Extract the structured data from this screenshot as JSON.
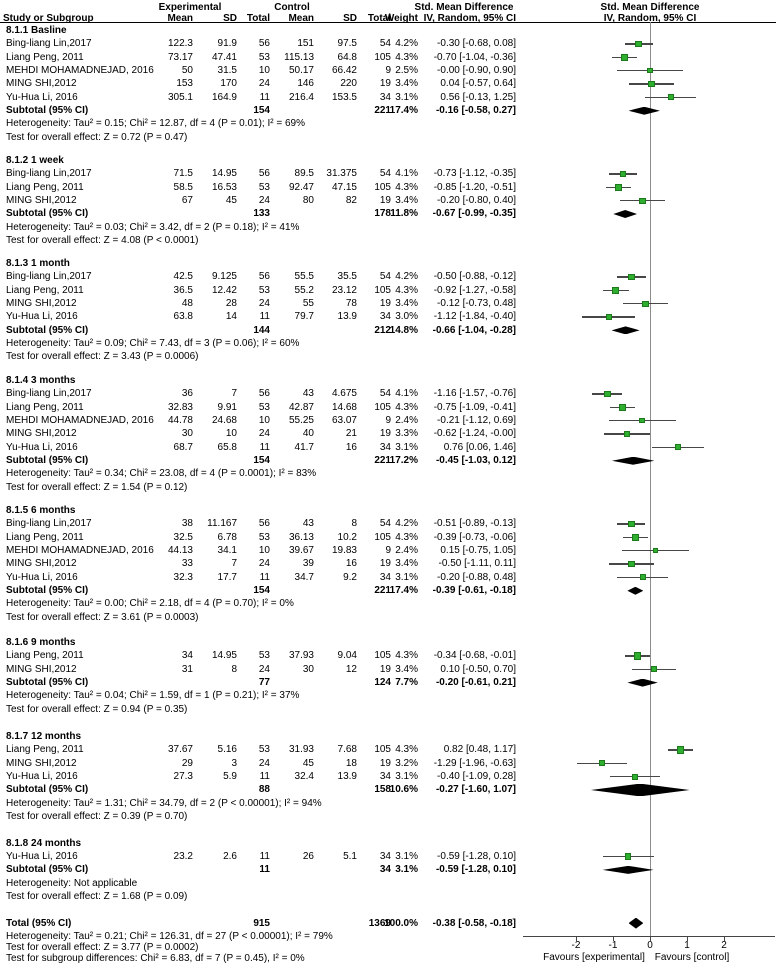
{
  "header": {
    "group_experimental": "Experimental",
    "group_control": "Control",
    "smd_title": "Std. Mean Difference",
    "smd_method": "IV, Random, 95% CI",
    "plot_title": "Std. Mean Difference",
    "plot_method": "IV, Random, 95% CI",
    "study": "Study or Subgroup",
    "mean": "Mean",
    "sd": "SD",
    "total": "Total",
    "mean2": "Mean",
    "sd2": "SD",
    "total2": "Total",
    "weight": "Weight"
  },
  "axis": {
    "ticks": [
      "-2",
      "-1",
      "0",
      "1",
      "2"
    ],
    "tick_values": [
      -2,
      -1,
      0,
      1,
      2
    ],
    "favours_left": "Favours [experimental]",
    "favours_right": "Favours [control]"
  },
  "colors": {
    "square": "#2eae2e",
    "square_border": "#1c7a1c",
    "ci_line": "#474747",
    "diamond": "#000000",
    "zero_line": "#8c8c8c"
  },
  "chart_data": {
    "type": "forest",
    "effect_measure": "Std. Mean Difference (IV, Random, 95% CI)",
    "xticks": [
      -2,
      -1,
      0,
      1,
      2
    ],
    "sections": [
      {
        "title": "8.1.1 Basline",
        "studies": [
          {
            "name": "Bing-liang Lin,2017",
            "exp_mean": "122.3",
            "exp_sd": "91.9",
            "exp_total": "56",
            "ctl_mean": "151",
            "ctl_sd": "97.5",
            "ctl_total": "54",
            "weight": "4.2%",
            "w": 4.2,
            "ci_text": "-0.30 [-0.68, 0.08]",
            "est": -0.3,
            "lo": -0.68,
            "hi": 0.08
          },
          {
            "name": "Liang Peng, 2011",
            "exp_mean": "73.17",
            "exp_sd": "47.41",
            "exp_total": "53",
            "ctl_mean": "115.13",
            "ctl_sd": "64.8",
            "ctl_total": "105",
            "weight": "4.3%",
            "w": 4.3,
            "ci_text": "-0.70 [-1.04, -0.36]",
            "est": -0.7,
            "lo": -1.04,
            "hi": -0.36
          },
          {
            "name": "MEHDI MOHAMADNEJAD, 2016",
            "exp_mean": "50",
            "exp_sd": "31.5",
            "exp_total": "10",
            "ctl_mean": "50.17",
            "ctl_sd": "66.42",
            "ctl_total": "9",
            "weight": "2.5%",
            "w": 2.5,
            "ci_text": "-0.00 [-0.90, 0.90]",
            "est": 0.0,
            "lo": -0.9,
            "hi": 0.9
          },
          {
            "name": "MING SHI,2012",
            "exp_mean": "153",
            "exp_sd": "170",
            "exp_total": "24",
            "ctl_mean": "146",
            "ctl_sd": "220",
            "ctl_total": "19",
            "weight": "3.4%",
            "w": 3.4,
            "ci_text": "0.04 [-0.57, 0.64]",
            "est": 0.04,
            "lo": -0.57,
            "hi": 0.64
          },
          {
            "name": "Yu-Hua Li, 2016",
            "exp_mean": "305.1",
            "exp_sd": "164.9",
            "exp_total": "11",
            "ctl_mean": "216.4",
            "ctl_sd": "153.5",
            "ctl_total": "34",
            "weight": "3.1%",
            "w": 3.1,
            "ci_text": "0.56 [-0.13, 1.25]",
            "est": 0.56,
            "lo": -0.13,
            "hi": 1.25
          }
        ],
        "subtotal": {
          "label": "Subtotal (95% CI)",
          "exp_total": "154",
          "ctl_total": "221",
          "weight": "17.4%",
          "ci_text": "-0.16 [-0.58, 0.27]",
          "est": -0.16,
          "lo": -0.58,
          "hi": 0.27
        },
        "heterogeneity": "Heterogeneity: Tau² = 0.15; Chi² = 12.87, df = 4 (P = 0.01); I² = 69%",
        "test": "Test for overall effect: Z = 0.72 (P = 0.47)"
      },
      {
        "title": "8.1.2 1 week",
        "studies": [
          {
            "name": "Bing-liang Lin,2017",
            "exp_mean": "71.5",
            "exp_sd": "14.95",
            "exp_total": "56",
            "ctl_mean": "89.5",
            "ctl_sd": "31.375",
            "ctl_total": "54",
            "weight": "4.1%",
            "w": 4.1,
            "ci_text": "-0.73 [-1.12, -0.35]",
            "est": -0.73,
            "lo": -1.12,
            "hi": -0.35
          },
          {
            "name": "Liang Peng, 2011",
            "exp_mean": "58.5",
            "exp_sd": "16.53",
            "exp_total": "53",
            "ctl_mean": "92.47",
            "ctl_sd": "47.15",
            "ctl_total": "105",
            "weight": "4.3%",
            "w": 4.3,
            "ci_text": "-0.85 [-1.20, -0.51]",
            "est": -0.85,
            "lo": -1.2,
            "hi": -0.51
          },
          {
            "name": "MING SHI,2012",
            "exp_mean": "67",
            "exp_sd": "45",
            "exp_total": "24",
            "ctl_mean": "80",
            "ctl_sd": "82",
            "ctl_total": "19",
            "weight": "3.4%",
            "w": 3.4,
            "ci_text": "-0.20 [-0.80, 0.40]",
            "est": -0.2,
            "lo": -0.8,
            "hi": 0.4
          }
        ],
        "subtotal": {
          "label": "Subtotal (95% CI)",
          "exp_total": "133",
          "ctl_total": "178",
          "weight": "11.8%",
          "ci_text": "-0.67 [-0.99, -0.35]",
          "est": -0.67,
          "lo": -0.99,
          "hi": -0.35
        },
        "heterogeneity": "Heterogeneity: Tau² = 0.03; Chi² = 3.42, df = 2 (P = 0.18); I² = 41%",
        "test": "Test for overall effect: Z = 4.08 (P < 0.0001)"
      },
      {
        "title": "8.1.3 1 month",
        "studies": [
          {
            "name": "Bing-liang Lin,2017",
            "exp_mean": "42.5",
            "exp_sd": "9.125",
            "exp_total": "56",
            "ctl_mean": "55.5",
            "ctl_sd": "35.5",
            "ctl_total": "54",
            "weight": "4.2%",
            "w": 4.2,
            "ci_text": "-0.50 [-0.88, -0.12]",
            "est": -0.5,
            "lo": -0.88,
            "hi": -0.12
          },
          {
            "name": "Liang Peng, 2011",
            "exp_mean": "36.5",
            "exp_sd": "12.42",
            "exp_total": "53",
            "ctl_mean": "55.2",
            "ctl_sd": "23.12",
            "ctl_total": "105",
            "weight": "4.3%",
            "w": 4.3,
            "ci_text": "-0.92 [-1.27, -0.58]",
            "est": -0.92,
            "lo": -1.27,
            "hi": -0.58
          },
          {
            "name": "MING SHI,2012",
            "exp_mean": "48",
            "exp_sd": "28",
            "exp_total": "24",
            "ctl_mean": "55",
            "ctl_sd": "78",
            "ctl_total": "19",
            "weight": "3.4%",
            "w": 3.4,
            "ci_text": "-0.12 [-0.73, 0.48]",
            "est": -0.12,
            "lo": -0.73,
            "hi": 0.48
          },
          {
            "name": "Yu-Hua Li, 2016",
            "exp_mean": "63.8",
            "exp_sd": "14",
            "exp_total": "11",
            "ctl_mean": "79.7",
            "ctl_sd": "13.9",
            "ctl_total": "34",
            "weight": "3.0%",
            "w": 3.0,
            "ci_text": "-1.12 [-1.84, -0.40]",
            "est": -1.12,
            "lo": -1.84,
            "hi": -0.4
          }
        ],
        "subtotal": {
          "label": "Subtotal (95% CI)",
          "exp_total": "144",
          "ctl_total": "212",
          "weight": "14.8%",
          "ci_text": "-0.66 [-1.04, -0.28]",
          "est": -0.66,
          "lo": -1.04,
          "hi": -0.28
        },
        "heterogeneity": "Heterogeneity: Tau² = 0.09; Chi² = 7.43, df = 3 (P = 0.06); I² = 60%",
        "test": "Test for overall effect: Z = 3.43 (P = 0.0006)"
      },
      {
        "title": "8.1.4 3 months",
        "studies": [
          {
            "name": "Bing-liang Lin,2017",
            "exp_mean": "36",
            "exp_sd": "7",
            "exp_total": "56",
            "ctl_mean": "43",
            "ctl_sd": "4.675",
            "ctl_total": "54",
            "weight": "4.1%",
            "w": 4.1,
            "ci_text": "-1.16 [-1.57, -0.76]",
            "est": -1.16,
            "lo": -1.57,
            "hi": -0.76
          },
          {
            "name": "Liang Peng, 2011",
            "exp_mean": "32.83",
            "exp_sd": "9.91",
            "exp_total": "53",
            "ctl_mean": "42.87",
            "ctl_sd": "14.68",
            "ctl_total": "105",
            "weight": "4.3%",
            "w": 4.3,
            "ci_text": "-0.75 [-1.09, -0.41]",
            "est": -0.75,
            "lo": -1.09,
            "hi": -0.41
          },
          {
            "name": "MEHDI MOHAMADNEJAD, 2016",
            "exp_mean": "44.78",
            "exp_sd": "24.68",
            "exp_total": "10",
            "ctl_mean": "55.25",
            "ctl_sd": "63.07",
            "ctl_total": "9",
            "weight": "2.4%",
            "w": 2.4,
            "ci_text": "-0.21 [-1.12, 0.69]",
            "est": -0.21,
            "lo": -1.12,
            "hi": 0.69
          },
          {
            "name": "MING SHI,2012",
            "exp_mean": "30",
            "exp_sd": "10",
            "exp_total": "24",
            "ctl_mean": "40",
            "ctl_sd": "21",
            "ctl_total": "19",
            "weight": "3.3%",
            "w": 3.3,
            "ci_text": "-0.62 [-1.24, -0.00]",
            "est": -0.62,
            "lo": -1.24,
            "hi": 0.0
          },
          {
            "name": "Yu-Hua Li, 2016",
            "exp_mean": "68.7",
            "exp_sd": "65.8",
            "exp_total": "11",
            "ctl_mean": "41.7",
            "ctl_sd": "16",
            "ctl_total": "34",
            "weight": "3.1%",
            "w": 3.1,
            "ci_text": "0.76 [0.06, 1.46]",
            "est": 0.76,
            "lo": 0.06,
            "hi": 1.46
          }
        ],
        "subtotal": {
          "label": "Subtotal (95% CI)",
          "exp_total": "154",
          "ctl_total": "221",
          "weight": "17.2%",
          "ci_text": "-0.45 [-1.03, 0.12]",
          "est": -0.45,
          "lo": -1.03,
          "hi": 0.12
        },
        "heterogeneity": "Heterogeneity: Tau² = 0.34; Chi² = 23.08, df = 4 (P = 0.0001); I² = 83%",
        "test": "Test for overall effect: Z = 1.54 (P = 0.12)"
      },
      {
        "title": "8.1.5 6 months",
        "studies": [
          {
            "name": "Bing-liang Lin,2017",
            "exp_mean": "38",
            "exp_sd": "11.167",
            "exp_total": "56",
            "ctl_mean": "43",
            "ctl_sd": "8",
            "ctl_total": "54",
            "weight": "4.2%",
            "w": 4.2,
            "ci_text": "-0.51 [-0.89, -0.13]",
            "est": -0.51,
            "lo": -0.89,
            "hi": -0.13
          },
          {
            "name": "Liang Peng, 2011",
            "exp_mean": "32.5",
            "exp_sd": "6.78",
            "exp_total": "53",
            "ctl_mean": "36.13",
            "ctl_sd": "10.2",
            "ctl_total": "105",
            "weight": "4.3%",
            "w": 4.3,
            "ci_text": "-0.39 [-0.73, -0.06]",
            "est": -0.39,
            "lo": -0.73,
            "hi": -0.06
          },
          {
            "name": "MEHDI MOHAMADNEJAD, 2016",
            "exp_mean": "44.13",
            "exp_sd": "34.1",
            "exp_total": "10",
            "ctl_mean": "39.67",
            "ctl_sd": "19.83",
            "ctl_total": "9",
            "weight": "2.4%",
            "w": 2.4,
            "ci_text": "0.15 [-0.75, 1.05]",
            "est": 0.15,
            "lo": -0.75,
            "hi": 1.05
          },
          {
            "name": "MING SHI,2012",
            "exp_mean": "33",
            "exp_sd": "7",
            "exp_total": "24",
            "ctl_mean": "39",
            "ctl_sd": "16",
            "ctl_total": "19",
            "weight": "3.4%",
            "w": 3.4,
            "ci_text": "-0.50 [-1.11, 0.11]",
            "est": -0.5,
            "lo": -1.11,
            "hi": 0.11
          },
          {
            "name": "Yu-Hua Li, 2016",
            "exp_mean": "32.3",
            "exp_sd": "17.7",
            "exp_total": "11",
            "ctl_mean": "34.7",
            "ctl_sd": "9.2",
            "ctl_total": "34",
            "weight": "3.1%",
            "w": 3.1,
            "ci_text": "-0.20 [-0.88, 0.48]",
            "est": -0.2,
            "lo": -0.88,
            "hi": 0.48
          }
        ],
        "subtotal": {
          "label": "Subtotal (95% CI)",
          "exp_total": "154",
          "ctl_total": "221",
          "weight": "17.4%",
          "ci_text": "-0.39 [-0.61, -0.18]",
          "est": -0.39,
          "lo": -0.61,
          "hi": -0.18
        },
        "heterogeneity": "Heterogeneity: Tau² = 0.00; Chi² = 2.18, df = 4 (P = 0.70); I² = 0%",
        "test": "Test for overall effect: Z = 3.61 (P = 0.0003)"
      },
      {
        "title": "8.1.6 9 months",
        "studies": [
          {
            "name": "Liang Peng, 2011",
            "exp_mean": "34",
            "exp_sd": "14.95",
            "exp_total": "53",
            "ctl_mean": "37.93",
            "ctl_sd": "9.04",
            "ctl_total": "105",
            "weight": "4.3%",
            "w": 4.3,
            "ci_text": "-0.34 [-0.68, -0.01]",
            "est": -0.34,
            "lo": -0.68,
            "hi": -0.01
          },
          {
            "name": "MING SHI,2012",
            "exp_mean": "31",
            "exp_sd": "8",
            "exp_total": "24",
            "ctl_mean": "30",
            "ctl_sd": "12",
            "ctl_total": "19",
            "weight": "3.4%",
            "w": 3.4,
            "ci_text": "0.10 [-0.50, 0.70]",
            "est": 0.1,
            "lo": -0.5,
            "hi": 0.7
          }
        ],
        "subtotal": {
          "label": "Subtotal (95% CI)",
          "exp_total": "77",
          "ctl_total": "124",
          "weight": "7.7%",
          "ci_text": "-0.20 [-0.61, 0.21]",
          "est": -0.2,
          "lo": -0.61,
          "hi": 0.21
        },
        "heterogeneity": "Heterogeneity: Tau² = 0.04; Chi² = 1.59, df = 1 (P = 0.21); I² = 37%",
        "test": "Test for overall effect: Z = 0.94 (P = 0.35)"
      },
      {
        "title": "8.1.7 12 months",
        "studies": [
          {
            "name": "Liang Peng, 2011",
            "exp_mean": "37.67",
            "exp_sd": "5.16",
            "exp_total": "53",
            "ctl_mean": "31.93",
            "ctl_sd": "7.68",
            "ctl_total": "105",
            "weight": "4.3%",
            "w": 4.3,
            "ci_text": "0.82 [0.48, 1.17]",
            "est": 0.82,
            "lo": 0.48,
            "hi": 1.17
          },
          {
            "name": "MING SHI,2012",
            "exp_mean": "29",
            "exp_sd": "3",
            "exp_total": "24",
            "ctl_mean": "45",
            "ctl_sd": "18",
            "ctl_total": "19",
            "weight": "3.2%",
            "w": 3.2,
            "ci_text": "-1.29 [-1.96, -0.63]",
            "est": -1.29,
            "lo": -1.96,
            "hi": -0.63
          },
          {
            "name": "Yu-Hua Li, 2016",
            "exp_mean": "27.3",
            "exp_sd": "5.9",
            "exp_total": "11",
            "ctl_mean": "32.4",
            "ctl_sd": "13.9",
            "ctl_total": "34",
            "weight": "3.1%",
            "w": 3.1,
            "ci_text": "-0.40 [-1.09, 0.28]",
            "est": -0.4,
            "lo": -1.09,
            "hi": 0.28
          }
        ],
        "subtotal": {
          "label": "Subtotal (95% CI)",
          "exp_total": "88",
          "ctl_total": "158",
          "weight": "10.6%",
          "ci_text": "-0.27 [-1.60, 1.07]",
          "est": -0.27,
          "lo": -1.6,
          "hi": 1.07
        },
        "heterogeneity": "Heterogeneity: Tau² = 1.31; Chi² = 34.79, df = 2 (P < 0.00001); I² = 94%",
        "test": "Test for overall effect: Z = 0.39 (P = 0.70)"
      },
      {
        "title": "8.1.8 24 months",
        "studies": [
          {
            "name": "Yu-Hua Li, 2016",
            "exp_mean": "23.2",
            "exp_sd": "2.6",
            "exp_total": "11",
            "ctl_mean": "26",
            "ctl_sd": "5.1",
            "ctl_total": "34",
            "weight": "3.1%",
            "w": 3.1,
            "ci_text": "-0.59 [-1.28, 0.10]",
            "est": -0.59,
            "lo": -1.28,
            "hi": 0.1
          }
        ],
        "subtotal": {
          "label": "Subtotal (95% CI)",
          "exp_total": "11",
          "ctl_total": "34",
          "weight": "3.1%",
          "ci_text": "-0.59 [-1.28, 0.10]",
          "est": -0.59,
          "lo": -1.28,
          "hi": 0.1
        },
        "heterogeneity": "Heterogeneity: Not applicable",
        "test": "Test for overall effect: Z = 1.68 (P = 0.09)"
      }
    ],
    "total": {
      "label": "Total (95% CI)",
      "exp_total": "915",
      "ctl_total": "1369",
      "weight": "100.0%",
      "ci_text": "-0.38 [-0.58, -0.18]",
      "est": -0.38,
      "lo": -0.58,
      "hi": -0.18,
      "heterogeneity": "Heterogeneity: Tau² = 0.21; Chi² = 126.31, df = 27 (P < 0.00001); I² = 79%",
      "test": "Test for overall effect: Z = 3.77 (P = 0.0002)",
      "subgroup_test": "Test for subgroup differences: Chi² = 6.83, df = 7 (P = 0.45), I² = 0%"
    }
  }
}
